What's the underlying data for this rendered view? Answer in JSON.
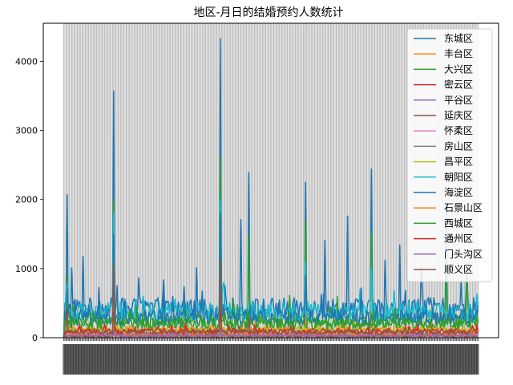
{
  "chart_data": {
    "type": "line",
    "title": "地区-月日的结婚预约人数统计",
    "xlabel": "",
    "ylabel": "",
    "ylim": [
      0,
      4550
    ],
    "yticks": [
      0,
      1000,
      2000,
      3000,
      4000
    ],
    "grid": "vertical-dense",
    "legend_position": "top-right",
    "n_points": 366,
    "series": [
      {
        "name": "东城区",
        "color": "#1f77b4",
        "base": 420,
        "amp": 160,
        "peaks": {
          "3": 2070,
          "7": 1010,
          "17": 1180,
          "44": 3570,
          "138": 4330,
          "156": 1710,
          "163": 2390,
          "213": 2250,
          "230": 1410,
          "250": 1760,
          "271": 2440,
          "283": 1120,
          "296": 1340,
          "315": 1020,
          "337": 1950,
          "355": 1020
        }
      },
      {
        "name": "丰台区",
        "color": "#ff7f0e",
        "base": 120,
        "amp": 50,
        "peaks": {
          "3": 330,
          "44": 500,
          "138": 640,
          "163": 320,
          "213": 340,
          "271": 360
        }
      },
      {
        "name": "大兴区",
        "color": "#2ca02c",
        "base": 250,
        "amp": 110,
        "peaks": {
          "3": 920,
          "44": 2000,
          "138": 2610,
          "163": 1510,
          "213": 1680,
          "271": 1530,
          "337": 1200,
          "355": 980
        }
      },
      {
        "name": "密云区",
        "color": "#d62728",
        "base": 30,
        "amp": 15,
        "peaks": {
          "44": 120,
          "138": 160
        }
      },
      {
        "name": "平谷区",
        "color": "#9467bd",
        "base": 25,
        "amp": 12,
        "peaks": {
          "44": 110,
          "138": 140
        }
      },
      {
        "name": "延庆区",
        "color": "#8c564b",
        "base": 20,
        "amp": 10,
        "peaks": {
          "44": 90,
          "138": 120
        }
      },
      {
        "name": "怀柔区",
        "color": "#e377c2",
        "base": 35,
        "amp": 15,
        "peaks": {
          "44": 130,
          "138": 170
        }
      },
      {
        "name": "房山区",
        "color": "#7f7f7f",
        "base": 60,
        "amp": 25,
        "peaks": {
          "44": 220,
          "138": 280
        }
      },
      {
        "name": "昌平区",
        "color": "#bcbd22",
        "base": 110,
        "amp": 45,
        "peaks": {
          "44": 410,
          "138": 520
        }
      },
      {
        "name": "朝阳区",
        "color": "#17becf",
        "base": 380,
        "amp": 140,
        "peaks": {
          "3": 800,
          "44": 1800,
          "138": 2000,
          "213": 1100,
          "271": 1000
        }
      },
      {
        "name": "海淀区",
        "color": "#1f77b4",
        "base": 300,
        "amp": 120,
        "peaks": {
          "3": 700,
          "44": 1500,
          "138": 1800,
          "213": 900
        }
      },
      {
        "name": "石景山区",
        "color": "#ff7f0e",
        "base": 50,
        "amp": 20,
        "peaks": {
          "44": 200,
          "138": 260
        }
      },
      {
        "name": "西城区",
        "color": "#2ca02c",
        "base": 200,
        "amp": 80,
        "peaks": {
          "3": 500,
          "44": 900,
          "138": 1100
        }
      },
      {
        "name": "通州区",
        "color": "#d62728",
        "base": 90,
        "amp": 40,
        "peaks": {
          "44": 380,
          "138": 420
        }
      },
      {
        "name": "门头沟区",
        "color": "#9467bd",
        "base": 30,
        "amp": 12,
        "peaks": {
          "44": 100,
          "138": 130
        }
      },
      {
        "name": "顺义区",
        "color": "#8c564b",
        "base": 80,
        "amp": 35,
        "peaks": {
          "3": 450,
          "44": 1070,
          "138": 1130,
          "163": 300
        }
      }
    ]
  }
}
